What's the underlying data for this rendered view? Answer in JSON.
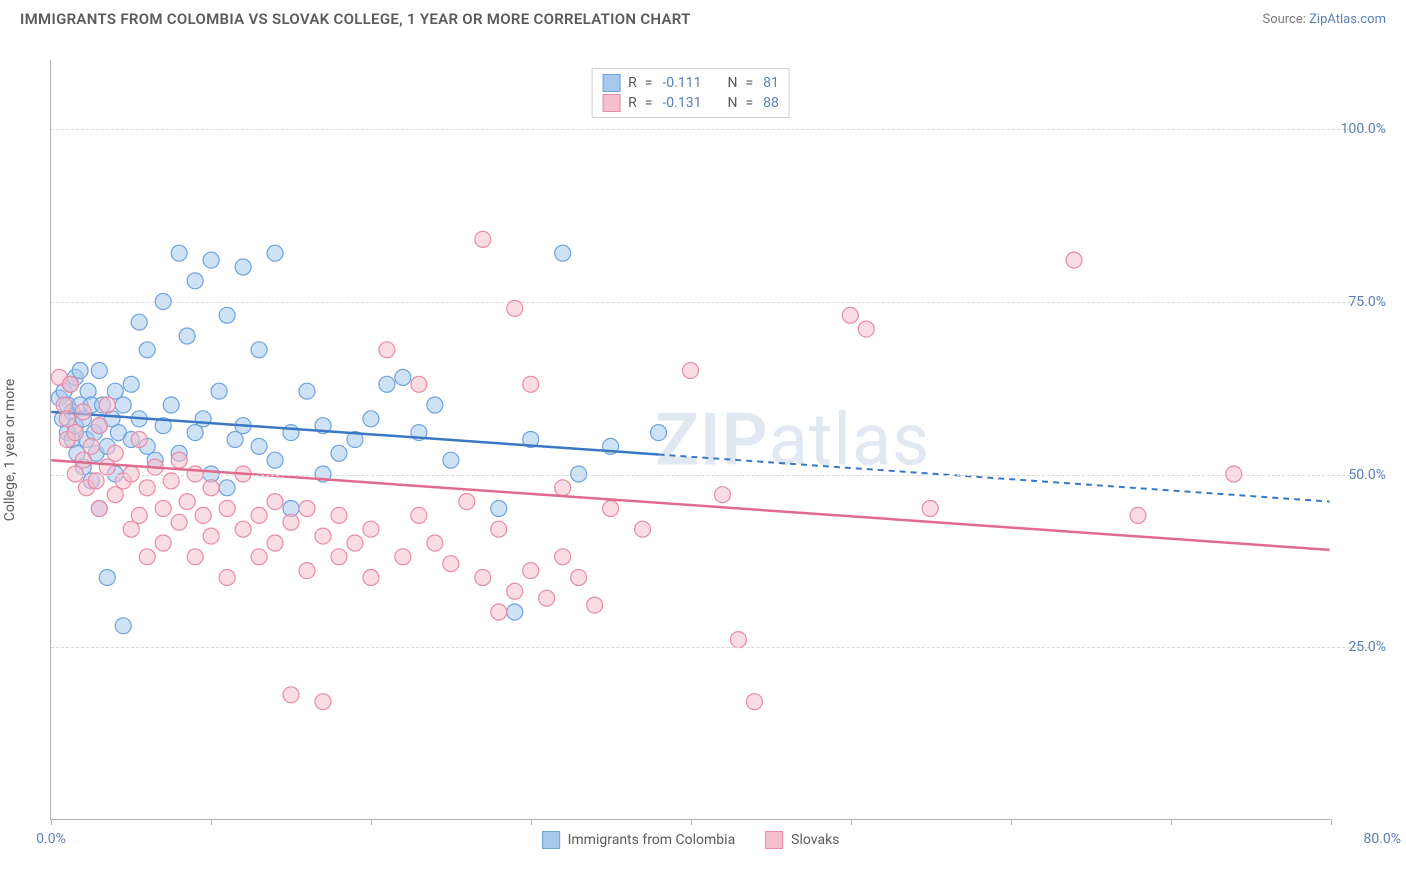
{
  "title": "IMMIGRANTS FROM COLOMBIA VS SLOVAK COLLEGE, 1 YEAR OR MORE CORRELATION CHART",
  "source_prefix": "Source: ",
  "source_name": "ZipAtlas.com",
  "y_axis_label": "College, 1 year or more",
  "watermark_bold": "ZIP",
  "watermark_rest": "atlas",
  "chart": {
    "type": "scatter-with-regression",
    "background_color": "#ffffff",
    "grid_color": "#d8d8d8",
    "axis_color": "#b0b0b0",
    "text_color": "#5a5a5a",
    "tick_label_color": "#5b7fb5",
    "xlim": [
      0,
      80
    ],
    "ylim": [
      0,
      110
    ],
    "x_ticks": [
      0,
      10,
      20,
      30,
      40,
      50,
      60,
      70,
      80
    ],
    "x_tick_labels": {
      "0": "0.0%",
      "80": "80.0%"
    },
    "y_gridlines": [
      25,
      50,
      75,
      100
    ],
    "y_tick_labels": {
      "25": "25.0%",
      "50": "50.0%",
      "75": "75.0%",
      "100": "100.0%"
    },
    "marker_radius": 8,
    "marker_opacity": 0.55,
    "line_width": 2.5,
    "series": [
      {
        "id": "colombia",
        "label": "Immigrants from Colombia",
        "fill": "#a8c8ec",
        "stroke": "#6fa3dc",
        "line_color": "#3b78c4",
        "r_value": "-0.111",
        "n_value": "81",
        "regression": {
          "x1": 0,
          "y1": 59,
          "x2": 80,
          "y2": 46,
          "solid_until_x": 38
        },
        "points": [
          [
            0.5,
            61
          ],
          [
            0.7,
            58
          ],
          [
            0.8,
            62
          ],
          [
            1,
            60
          ],
          [
            1,
            56
          ],
          [
            1.2,
            63
          ],
          [
            1.3,
            59
          ],
          [
            1.3,
            55
          ],
          [
            1.5,
            64
          ],
          [
            1.5,
            57
          ],
          [
            1.6,
            53
          ],
          [
            1.8,
            60
          ],
          [
            1.8,
            65
          ],
          [
            2,
            58
          ],
          [
            2,
            51
          ],
          [
            2.2,
            55
          ],
          [
            2.3,
            62
          ],
          [
            2.5,
            60
          ],
          [
            2.5,
            49
          ],
          [
            2.7,
            56
          ],
          [
            2.8,
            53
          ],
          [
            3,
            65
          ],
          [
            3,
            57
          ],
          [
            3,
            45
          ],
          [
            3.2,
            60
          ],
          [
            3.5,
            54
          ],
          [
            3.5,
            35
          ],
          [
            3.8,
            58
          ],
          [
            4,
            62
          ],
          [
            4,
            50
          ],
          [
            4.2,
            56
          ],
          [
            4.5,
            60
          ],
          [
            4.5,
            28
          ],
          [
            5,
            55
          ],
          [
            5,
            63
          ],
          [
            5.5,
            58
          ],
          [
            5.5,
            72
          ],
          [
            6,
            54
          ],
          [
            6,
            68
          ],
          [
            6.5,
            52
          ],
          [
            7,
            57
          ],
          [
            7,
            75
          ],
          [
            7.5,
            60
          ],
          [
            8,
            82
          ],
          [
            8,
            53
          ],
          [
            8.5,
            70
          ],
          [
            9,
            56
          ],
          [
            9,
            78
          ],
          [
            9.5,
            58
          ],
          [
            10,
            81
          ],
          [
            10,
            50
          ],
          [
            10.5,
            62
          ],
          [
            11,
            73
          ],
          [
            11,
            48
          ],
          [
            11.5,
            55
          ],
          [
            12,
            80
          ],
          [
            12,
            57
          ],
          [
            13,
            54
          ],
          [
            13,
            68
          ],
          [
            14,
            82
          ],
          [
            14,
            52
          ],
          [
            15,
            56
          ],
          [
            15,
            45
          ],
          [
            16,
            62
          ],
          [
            17,
            50
          ],
          [
            17,
            57
          ],
          [
            18,
            53
          ],
          [
            19,
            55
          ],
          [
            20,
            58
          ],
          [
            21,
            63
          ],
          [
            22,
            64
          ],
          [
            23,
            56
          ],
          [
            24,
            60
          ],
          [
            25,
            52
          ],
          [
            28,
            45
          ],
          [
            29,
            30
          ],
          [
            30,
            55
          ],
          [
            32,
            82
          ],
          [
            33,
            50
          ],
          [
            35,
            54
          ],
          [
            38,
            56
          ]
        ]
      },
      {
        "id": "slovaks",
        "label": "Slovaks",
        "fill": "#f5c0cd",
        "stroke": "#e88ba5",
        "line_color": "#e06b8f",
        "r_value": "-0.131",
        "n_value": "88",
        "regression": {
          "x1": 0,
          "y1": 52,
          "x2": 80,
          "y2": 39,
          "solid_until_x": 80
        },
        "points": [
          [
            0.5,
            64
          ],
          [
            0.8,
            60
          ],
          [
            1,
            55
          ],
          [
            1,
            58
          ],
          [
            1.2,
            63
          ],
          [
            1.5,
            50
          ],
          [
            1.5,
            56
          ],
          [
            2,
            52
          ],
          [
            2,
            59
          ],
          [
            2.2,
            48
          ],
          [
            2.5,
            54
          ],
          [
            2.8,
            49
          ],
          [
            3,
            57
          ],
          [
            3,
            45
          ],
          [
            3.5,
            51
          ],
          [
            3.5,
            60
          ],
          [
            4,
            47
          ],
          [
            4,
            53
          ],
          [
            4.5,
            49
          ],
          [
            5,
            50
          ],
          [
            5,
            42
          ],
          [
            5.5,
            55
          ],
          [
            5.5,
            44
          ],
          [
            6,
            48
          ],
          [
            6,
            38
          ],
          [
            6.5,
            51
          ],
          [
            7,
            45
          ],
          [
            7,
            40
          ],
          [
            7.5,
            49
          ],
          [
            8,
            43
          ],
          [
            8,
            52
          ],
          [
            8.5,
            46
          ],
          [
            9,
            50
          ],
          [
            9,
            38
          ],
          [
            9.5,
            44
          ],
          [
            10,
            41
          ],
          [
            10,
            48
          ],
          [
            11,
            45
          ],
          [
            11,
            35
          ],
          [
            12,
            42
          ],
          [
            12,
            50
          ],
          [
            13,
            44
          ],
          [
            13,
            38
          ],
          [
            14,
            46
          ],
          [
            14,
            40
          ],
          [
            15,
            43
          ],
          [
            15,
            18
          ],
          [
            16,
            45
          ],
          [
            16,
            36
          ],
          [
            17,
            41
          ],
          [
            17,
            17
          ],
          [
            18,
            44
          ],
          [
            18,
            38
          ],
          [
            19,
            40
          ],
          [
            20,
            42
          ],
          [
            20,
            35
          ],
          [
            21,
            68
          ],
          [
            22,
            38
          ],
          [
            23,
            44
          ],
          [
            23,
            63
          ],
          [
            24,
            40
          ],
          [
            25,
            37
          ],
          [
            26,
            46
          ],
          [
            27,
            84
          ],
          [
            27,
            35
          ],
          [
            28,
            42
          ],
          [
            28,
            30
          ],
          [
            29,
            74
          ],
          [
            29,
            33
          ],
          [
            30,
            63
          ],
          [
            30,
            36
          ],
          [
            31,
            32
          ],
          [
            32,
            38
          ],
          [
            32,
            48
          ],
          [
            33,
            35
          ],
          [
            34,
            31
          ],
          [
            35,
            45
          ],
          [
            37,
            42
          ],
          [
            40,
            65
          ],
          [
            42,
            47
          ],
          [
            43,
            26
          ],
          [
            44,
            17
          ],
          [
            50,
            73
          ],
          [
            51,
            71
          ],
          [
            55,
            45
          ],
          [
            64,
            81
          ],
          [
            68,
            44
          ],
          [
            74,
            50
          ]
        ]
      }
    ]
  },
  "stats_labels": {
    "r": "R",
    "eq": "=",
    "n": "N"
  },
  "legend_bottom": [
    "Immigrants from Colombia",
    "Slovaks"
  ]
}
